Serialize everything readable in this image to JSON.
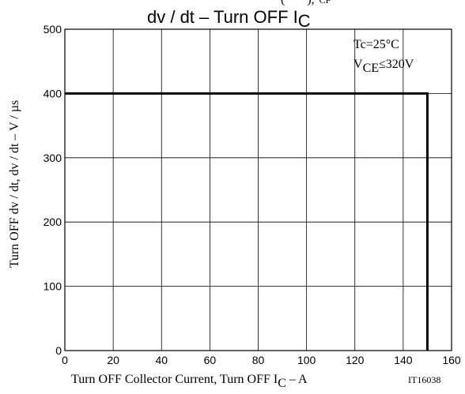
{
  "chart_data": {
    "type": "line",
    "title": {
      "prefix": "dv / dt  –  Turn OFF I",
      "sub": "C",
      "top_fragment": "(",
      "top_fragment2": "),",
      "top_fragment3": "CP"
    },
    "xlabel": {
      "prefix": "Turn OFF Collector Current, Turn OFF I",
      "sub": "C",
      "suffix": " – A"
    },
    "ylabel": "Turn OFF dv / dt, dv / dt  –  V / µs",
    "figure_id": "IT16038",
    "annotations": [
      {
        "text": "Tc=25°C"
      },
      {
        "prefix": "V",
        "sub": "CE",
        "suffix": "≤320V"
      }
    ],
    "xlim": [
      0,
      160
    ],
    "ylim": [
      0,
      500
    ],
    "xticks": [
      0,
      20,
      40,
      60,
      80,
      100,
      120,
      140,
      160
    ],
    "yticks": [
      0,
      100,
      200,
      300,
      400,
      500
    ],
    "grid": true,
    "series": [
      {
        "x": [
          0,
          150,
          150
        ],
        "y": [
          400,
          400,
          0
        ]
      }
    ],
    "colors": {
      "line": "#000000",
      "grid": "#000000",
      "text": "#000000"
    }
  }
}
